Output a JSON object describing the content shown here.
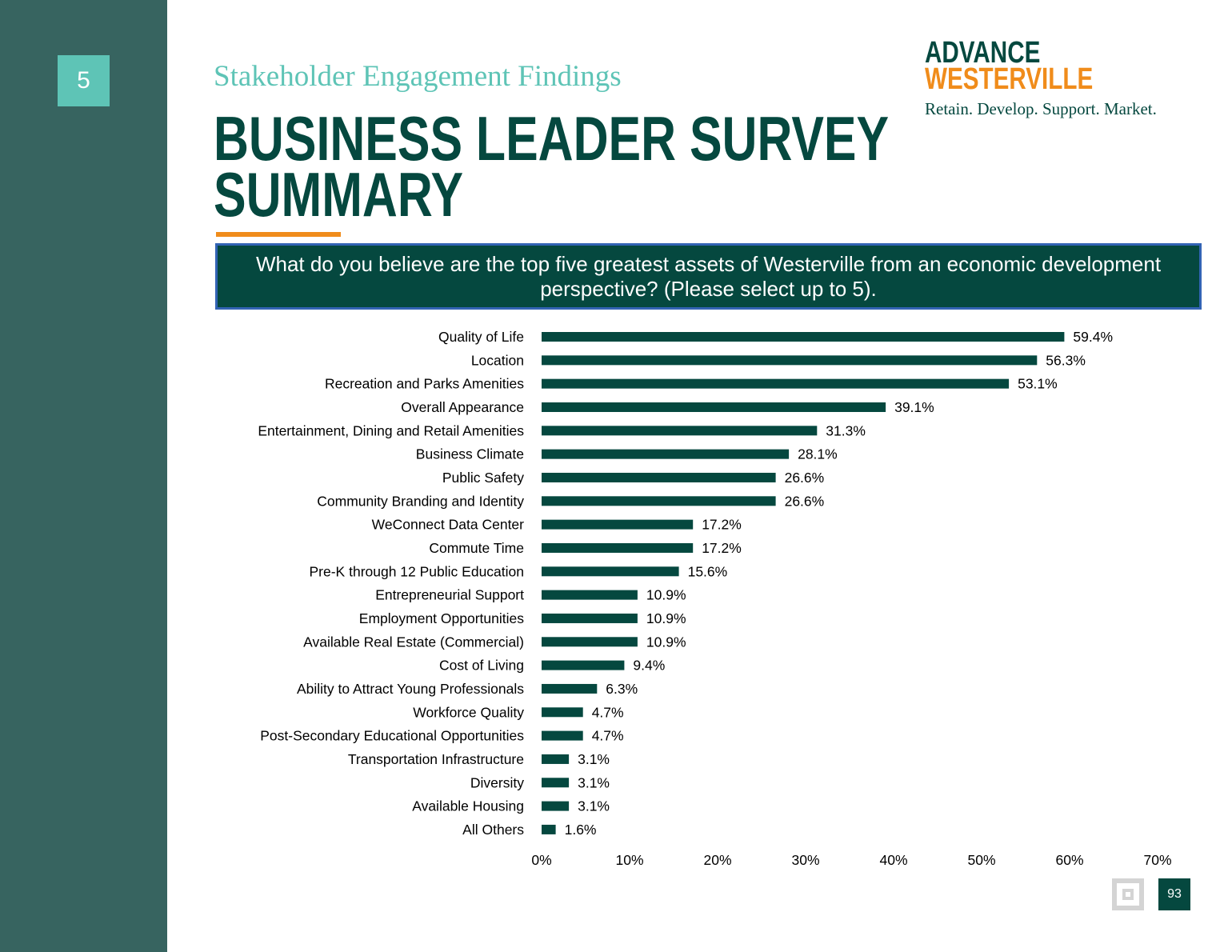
{
  "slide": {
    "section_number": "5",
    "kicker": "Stakeholder Engagement Findings",
    "title_line1": "BUSINESS LEADER SURVEY",
    "title_line2": "SUMMARY",
    "page_number": "93"
  },
  "logo": {
    "line1": "ADVANCE",
    "line2": "WESTERVILLE",
    "tagline": "Retain. Develop. Support. Market."
  },
  "question": "What do you believe are the top five greatest assets of Westerville from an economic development perspective? (Please select up to 5).",
  "colors": {
    "sidebar": "#376460",
    "accent_teal": "#5ec4b6",
    "dark_green": "#05483f",
    "orange": "#f08c1b",
    "question_border": "#3263b4",
    "bar": "#05483f"
  },
  "icons": {
    "footer": "building-logo-icon"
  },
  "chart_data": {
    "type": "bar",
    "orientation": "horizontal",
    "categories": [
      "Quality of Life",
      "Location",
      "Recreation and Parks Amenities",
      "Overall Appearance",
      "Entertainment, Dining and Retail Amenities",
      "Business Climate",
      "Public Safety",
      "Community Branding and Identity",
      "WeConnect Data Center",
      "Commute Time",
      "Pre-K through 12 Public Education",
      "Entrepreneurial Support",
      "Employment Opportunities",
      "Available Real Estate (Commercial)",
      "Cost of Living",
      "Ability to Attract Young Professionals",
      "Workforce Quality",
      "Post-Secondary Educational Opportunities",
      "Transportation Infrastructure",
      "Diversity",
      "Available Housing",
      "All Others"
    ],
    "values": [
      59.4,
      56.3,
      53.1,
      39.1,
      31.3,
      28.1,
      26.6,
      26.6,
      17.2,
      17.2,
      15.6,
      10.9,
      10.9,
      10.9,
      9.4,
      6.3,
      4.7,
      4.7,
      3.1,
      3.1,
      3.1,
      1.6
    ],
    "value_labels": [
      "59.4%",
      "56.3%",
      "53.1%",
      "39.1%",
      "31.3%",
      "28.1%",
      "26.6%",
      "26.6%",
      "17.2%",
      "17.2%",
      "15.6%",
      "10.9%",
      "10.9%",
      "10.9%",
      "9.4%",
      "6.3%",
      "4.7%",
      "4.7%",
      "3.1%",
      "3.1%",
      "3.1%",
      "1.6%"
    ],
    "xlim": [
      0,
      70
    ],
    "x_ticks": [
      "0%",
      "10%",
      "20%",
      "30%",
      "40%",
      "50%",
      "60%",
      "70%"
    ],
    "grid": false,
    "legend": "none"
  }
}
